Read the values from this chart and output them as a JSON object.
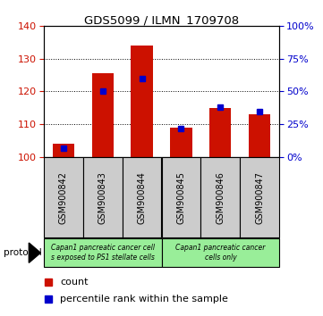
{
  "title": "GDS5099 / ILMN_1709708",
  "samples": [
    "GSM900842",
    "GSM900843",
    "GSM900844",
    "GSM900845",
    "GSM900846",
    "GSM900847"
  ],
  "counts": [
    104.0,
    125.5,
    134.0,
    109.0,
    115.0,
    113.0
  ],
  "percentiles": [
    7.0,
    50.0,
    60.0,
    22.0,
    38.0,
    35.0
  ],
  "ylim_left": [
    100,
    140
  ],
  "ylim_right": [
    0,
    100
  ],
  "yticks_left": [
    100,
    110,
    120,
    130,
    140
  ],
  "yticks_right": [
    0,
    25,
    50,
    75,
    100
  ],
  "bar_color": "#cc1100",
  "marker_color": "#0000cc",
  "bg_color_plot": "#ffffff",
  "tick_box_color": "#cccccc",
  "protocol_color": "#99ee99",
  "protocol_group1_label": "Capan1 pancreatic cancer cell\ns exposed to PS1 stellate cells",
  "protocol_group2_label": "Capan1 pancreatic cancer\ncells only",
  "legend_count_label": "count",
  "legend_percentile_label": "percentile rank within the sample",
  "bar_width": 0.55,
  "protocol_label": "protocol"
}
